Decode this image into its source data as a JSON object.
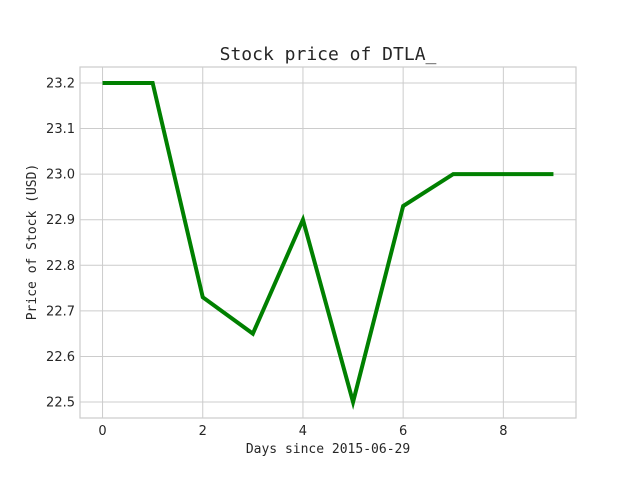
{
  "chart_data": {
    "type": "line",
    "title": "Stock price of DTLA_",
    "xlabel": "Days since 2015-06-29",
    "ylabel": "Price of Stock (USD)",
    "xlim": [
      -0.45,
      9.45
    ],
    "ylim": [
      22.465,
      23.235
    ],
    "xticks": [
      0,
      2,
      4,
      6,
      8
    ],
    "yticks": [
      22.5,
      22.6,
      22.7,
      22.8,
      22.9,
      23.0,
      23.1,
      23.2
    ],
    "ytick_labels": [
      "22.5",
      "22.6",
      "22.7",
      "22.8",
      "22.9",
      "23.0",
      "23.1",
      "23.2"
    ],
    "grid": true,
    "series": [
      {
        "color": "#008000",
        "x": [
          0,
          1,
          2,
          3,
          4,
          5,
          6,
          7,
          8,
          9
        ],
        "values": [
          23.2,
          23.2,
          22.73,
          22.65,
          22.9,
          22.5,
          22.93,
          23.0,
          23.0,
          23.0
        ]
      }
    ]
  }
}
